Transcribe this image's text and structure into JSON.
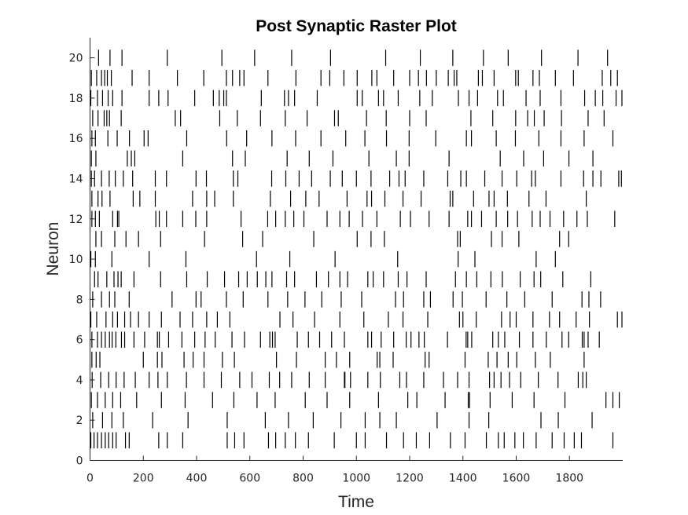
{
  "chart_data": {
    "type": "scatter",
    "marker": "vertical-line",
    "title": "Post Synaptic Raster Plot",
    "xlabel": "Time",
    "ylabel": "Neuron",
    "xlim": [
      0,
      2000
    ],
    "ylim": [
      0,
      21
    ],
    "xticks": [
      0,
      200,
      400,
      600,
      800,
      1000,
      1200,
      1400,
      1600,
      1800
    ],
    "xtick_labels": [
      "0",
      "200",
      "400",
      "600",
      "800",
      "1000",
      "1200",
      "1400",
      "1600",
      "1800"
    ],
    "yticks": [
      0,
      2,
      4,
      6,
      8,
      10,
      12,
      14,
      16,
      18,
      20
    ],
    "ytick_labels": [
      "0",
      "2",
      "4",
      "6",
      "8",
      "10",
      "12",
      "14",
      "16",
      "18",
      "20"
    ],
    "grid": false,
    "color": "#000000",
    "series": [
      {
        "neuron": 1,
        "spikes": [
          3,
          15,
          28,
          43,
          57,
          70,
          85,
          98,
          133,
          147,
          258,
          290,
          348,
          515,
          543,
          578,
          670,
          697,
          733,
          771,
          820,
          917,
          1000,
          1033,
          1113,
          1177,
          1225,
          1275,
          1353,
          1408,
          1488,
          1533,
          1555,
          1595,
          1627,
          1675,
          1735,
          1780,
          1818,
          1845,
          1963
        ]
      },
      {
        "neuron": 2,
        "spikes": [
          10,
          47,
          82,
          125,
          235,
          368,
          515,
          658,
          745,
          838,
          942,
          1033,
          1088,
          1150,
          1303,
          1423,
          1497,
          1693,
          1758,
          1885
        ]
      },
      {
        "neuron": 3,
        "spikes": [
          5,
          28,
          57,
          85,
          115,
          175,
          268,
          357,
          460,
          540,
          627,
          695,
          808,
          890,
          975,
          1083,
          1193,
          1227,
          1333,
          1420,
          1425,
          1502,
          1585,
          1667,
          1783,
          1937,
          1963,
          1987
        ]
      },
      {
        "neuron": 4,
        "spikes": [
          8,
          40,
          70,
          98,
          128,
          170,
          222,
          255,
          290,
          362,
          428,
          493,
          562,
          608,
          673,
          712,
          757,
          823,
          883,
          955,
          957,
          978,
          1043,
          1090,
          1163,
          1188,
          1253,
          1327,
          1380,
          1423,
          1500,
          1517,
          1543,
          1575,
          1617,
          1683,
          1757,
          1833,
          1850,
          1863
        ]
      },
      {
        "neuron": 5,
        "spikes": [
          7,
          23,
          37,
          200,
          253,
          270,
          353,
          387,
          428,
          497,
          542,
          700,
          775,
          883,
          925,
          975,
          1078,
          1088,
          1138,
          1258,
          1273,
          1408,
          1495,
          1528,
          1570,
          1602,
          1672,
          1728,
          1855
        ]
      },
      {
        "neuron": 6,
        "spikes": [
          7,
          28,
          43,
          57,
          73,
          83,
          97,
          118,
          130,
          165,
          205,
          253,
          260,
          295,
          345,
          393,
          432,
          470,
          533,
          580,
          640,
          675,
          685,
          695,
          778,
          820,
          862,
          907,
          955,
          1043,
          1057,
          1093,
          1140,
          1187,
          1205,
          1235,
          1255,
          1342,
          1412,
          1418,
          1433,
          1512,
          1533,
          1557,
          1612,
          1663,
          1713,
          1772,
          1797,
          1848,
          1855,
          1870,
          1912
        ]
      },
      {
        "neuron": 7,
        "spikes": [
          3,
          25,
          60,
          85,
          103,
          130,
          152,
          182,
          222,
          268,
          338,
          385,
          438,
          478,
          525,
          713,
          762,
          843,
          938,
          1028,
          1120,
          1175,
          1268,
          1387,
          1400,
          1450,
          1545,
          1577,
          1600,
          1663,
          1725,
          1763,
          1825,
          1875,
          1980,
          1997
        ]
      },
      {
        "neuron": 8,
        "spikes": [
          10,
          43,
          73,
          93,
          147,
          308,
          398,
          417,
          512,
          575,
          668,
          742,
          807,
          870,
          943,
          1020,
          1147,
          1177,
          1253,
          1278,
          1363,
          1398,
          1487,
          1565,
          1632,
          1735,
          1847,
          1873,
          1917
        ]
      },
      {
        "neuron": 9,
        "spikes": [
          17,
          30,
          63,
          90,
          105,
          117,
          165,
          265,
          363,
          440,
          505,
          558,
          590,
          628,
          660,
          683,
          738,
          768,
          850,
          895,
          938,
          967,
          1043,
          1063,
          1102,
          1157,
          1190,
          1262,
          1372,
          1413,
          1452,
          1505,
          1548,
          1615,
          1667,
          1692,
          1775,
          1880
        ]
      },
      {
        "neuron": 10,
        "spikes": [
          3,
          20,
          82,
          222,
          360,
          625,
          750,
          920,
          1155,
          1382,
          1445,
          1675,
          1747
        ]
      },
      {
        "neuron": 11,
        "spikes": [
          22,
          43,
          93,
          135,
          182,
          265,
          430,
          573,
          648,
          840,
          1003,
          1055,
          1105,
          1380,
          1390,
          1507,
          1547,
          1610,
          1763,
          1797
        ]
      },
      {
        "neuron": 12,
        "spikes": [
          7,
          20,
          35,
          85,
          103,
          108,
          247,
          260,
          287,
          348,
          397,
          438,
          567,
          667,
          697,
          733,
          765,
          803,
          890,
          938,
          973,
          1023,
          1077,
          1165,
          1203,
          1273,
          1348,
          1418,
          1432,
          1470,
          1525,
          1568,
          1605,
          1660,
          1690,
          1727,
          1778,
          1828,
          1867,
          1970
        ]
      },
      {
        "neuron": 13,
        "spikes": [
          7,
          30,
          45,
          75,
          162,
          187,
          245,
          385,
          438,
          468,
          538,
          677,
          753,
          810,
          860,
          965,
          1040,
          1057,
          1107,
          1175,
          1243,
          1352,
          1362,
          1440,
          1498,
          1517,
          1567,
          1648,
          1712,
          1863
        ]
      },
      {
        "neuron": 14,
        "spikes": [
          5,
          17,
          43,
          72,
          95,
          125,
          160,
          245,
          287,
          398,
          437,
          538,
          555,
          682,
          735,
          785,
          832,
          902,
          947,
          1000,
          1055,
          1125,
          1160,
          1183,
          1253,
          1343,
          1392,
          1413,
          1482,
          1547,
          1602,
          1658,
          1672,
          1768,
          1853,
          1888,
          1918,
          1985,
          1995
        ]
      },
      {
        "neuron": 15,
        "spikes": [
          5,
          22,
          140,
          155,
          168,
          348,
          535,
          583,
          740,
          823,
          912,
          1047,
          1150,
          1198,
          1348,
          1540,
          1628,
          1703,
          1798,
          1888
        ]
      },
      {
        "neuron": 16,
        "spikes": [
          7,
          20,
          67,
          102,
          148,
          203,
          218,
          363,
          513,
          588,
          683,
          772,
          867,
          960,
          1032,
          1113,
          1198,
          1298,
          1413,
          1432,
          1525,
          1597,
          1685,
          1768,
          1855,
          1963
        ]
      },
      {
        "neuron": 17,
        "spikes": [
          10,
          30,
          53,
          63,
          73,
          117,
          320,
          340,
          487,
          553,
          640,
          733,
          815,
          918,
          932,
          1038,
          1112,
          1200,
          1262,
          1430,
          1512,
          1598,
          1643,
          1668,
          1705,
          1770,
          1870,
          1930
        ]
      },
      {
        "neuron": 18,
        "spikes": [
          3,
          28,
          47,
          68,
          85,
          120,
          222,
          258,
          293,
          393,
          463,
          485,
          502,
          512,
          643,
          730,
          745,
          768,
          853,
          1003,
          1022,
          1083,
          1102,
          1157,
          1238,
          1285,
          1383,
          1423,
          1455,
          1530,
          1552,
          1637,
          1690,
          1768,
          1857,
          1897,
          1925,
          1975,
          1997
        ]
      },
      {
        "neuron": 19,
        "spikes": [
          5,
          25,
          43,
          55,
          65,
          80,
          158,
          222,
          328,
          427,
          512,
          535,
          562,
          578,
          668,
          773,
          867,
          900,
          953,
          1003,
          1058,
          1077,
          1140,
          1200,
          1233,
          1263,
          1300,
          1345,
          1367,
          1377,
          1458,
          1473,
          1517,
          1598,
          1608,
          1663,
          1687,
          1747,
          1815,
          1923,
          1955,
          1980
        ]
      },
      {
        "neuron": 20,
        "spikes": [
          32,
          75,
          120,
          290,
          495,
          618,
          757,
          903,
          1110,
          1240,
          1362,
          1477,
          1570,
          1695,
          1832,
          1943
        ]
      }
    ]
  }
}
